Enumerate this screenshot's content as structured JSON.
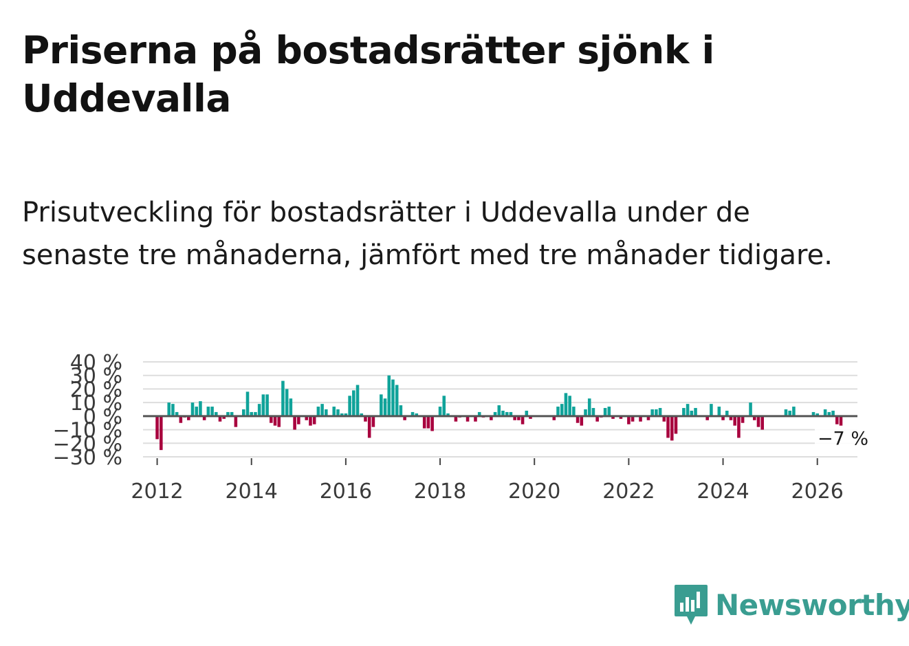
{
  "title": "Priserna på bostadsrätter sjönk i Uddevalla",
  "subtitle": "Prisutveckling för bostadsrätter i Uddevalla under de senaste tre månaderna, jämfört med tre månader tidigare.",
  "brand": {
    "name": "Newsworthy",
    "color": "#3a9d91"
  },
  "colors": {
    "positive": "#10a39a",
    "negative": "#a8003e",
    "zero_line": "#555555",
    "grid": "#dddddd"
  },
  "chart_data": {
    "type": "bar",
    "title": "Priserna på bostadsrätter sjönk i Uddevalla",
    "xlabel": "",
    "ylabel": "",
    "x_start": "2012-01",
    "x_step": "month",
    "xlim": [
      2011.7,
      2026.85
    ],
    "ylim": [
      -30,
      40
    ],
    "y_ticks": [
      40,
      30,
      20,
      10,
      0,
      -10,
      -20,
      -30
    ],
    "y_tick_labels": [
      "40 %",
      "30 %",
      "20 %",
      "10 %",
      "0 %",
      "−10 %",
      "−20 %",
      "−30 %"
    ],
    "x_ticks": [
      2012,
      2014,
      2016,
      2018,
      2020,
      2022,
      2024,
      2026
    ],
    "x_tick_labels": [
      "2012",
      "2014",
      "2016",
      "2018",
      "2020",
      "2022",
      "2024",
      "2026"
    ],
    "last_value_label": "−7 %",
    "values": [
      -17,
      -25,
      0,
      10,
      9,
      3,
      -5,
      -1,
      -3,
      10,
      7,
      11,
      -3,
      7,
      7,
      3,
      -4,
      -2,
      3,
      3,
      -8,
      0,
      5,
      18,
      3,
      3,
      9,
      16,
      16,
      -5,
      -7,
      -8,
      26,
      20,
      13,
      -10,
      -6,
      0,
      -3,
      -7,
      -6,
      7,
      9,
      5,
      0,
      7,
      5,
      2,
      2,
      15,
      19,
      23,
      2,
      -4,
      -16,
      -8,
      0,
      16,
      13,
      30,
      27,
      23,
      8,
      -3,
      0,
      3,
      2,
      0,
      -9,
      -9,
      -11,
      0,
      7,
      15,
      2,
      0,
      -4,
      -1,
      0,
      -4,
      0,
      -4,
      3,
      -1,
      0,
      -3,
      3,
      8,
      4,
      3,
      3,
      -3,
      -3,
      -6,
      4,
      -2,
      0,
      0,
      0,
      0,
      0,
      -3,
      7,
      9,
      17,
      15,
      7,
      -5,
      -7,
      5,
      13,
      6,
      -4,
      -1,
      6,
      7,
      -2,
      0,
      -2,
      0,
      -6,
      -4,
      0,
      -4,
      0,
      -3,
      5,
      5,
      6,
      -4,
      -16,
      -18,
      -13,
      0,
      6,
      9,
      4,
      6,
      0,
      0,
      -3,
      9,
      0,
      7,
      -3,
      4,
      -3,
      -7,
      -16,
      -5,
      0,
      10,
      -3,
      -8,
      -10,
      0,
      0,
      0,
      0,
      0,
      5,
      4,
      7,
      0,
      0,
      0,
      0,
      3,
      2,
      0,
      5,
      3,
      4,
      -6,
      -7
    ]
  }
}
